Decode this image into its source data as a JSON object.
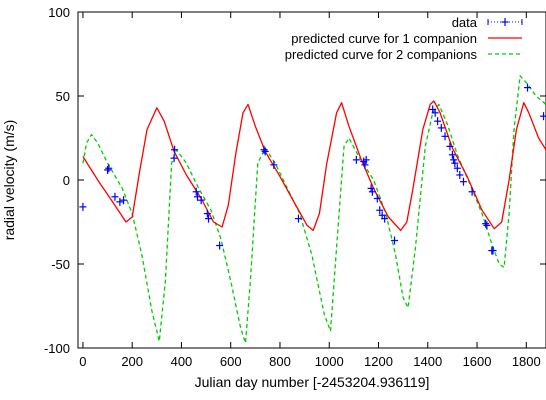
{
  "chart_data": {
    "type": "line",
    "xlabel": "Julian day number [-2453204.936119]",
    "ylabel": "radial velocity (m/s)",
    "xlim": [
      -20,
      1880
    ],
    "ylim": [
      -100,
      100
    ],
    "x_ticks": [
      0,
      200,
      400,
      600,
      800,
      1000,
      1200,
      1400,
      1600,
      1800
    ],
    "y_ticks": [
      -100,
      -50,
      0,
      50,
      100
    ],
    "grid": false,
    "legend_position": "top-right",
    "series": [
      {
        "name": "data",
        "style": "points",
        "color": "#0000ff",
        "points": [
          [
            0,
            -16
          ],
          [
            100,
            6
          ],
          [
            105,
            7
          ],
          [
            130,
            -10
          ],
          [
            150,
            -13
          ],
          [
            165,
            -12
          ],
          [
            370,
            13
          ],
          [
            372,
            18
          ],
          [
            460,
            -7
          ],
          [
            465,
            -10
          ],
          [
            480,
            -12
          ],
          [
            505,
            -20
          ],
          [
            510,
            -23
          ],
          [
            555,
            -39
          ],
          [
            735,
            18
          ],
          [
            740,
            17
          ],
          [
            775,
            9
          ],
          [
            875,
            -23
          ],
          [
            1110,
            12
          ],
          [
            1140,
            11
          ],
          [
            1145,
            9
          ],
          [
            1150,
            12
          ],
          [
            1170,
            -5
          ],
          [
            1175,
            -7
          ],
          [
            1195,
            -11
          ],
          [
            1205,
            -18
          ],
          [
            1215,
            -21
          ],
          [
            1225,
            -23
          ],
          [
            1265,
            -36
          ],
          [
            1420,
            42
          ],
          [
            1430,
            40
          ],
          [
            1440,
            35
          ],
          [
            1455,
            31
          ],
          [
            1470,
            26
          ],
          [
            1490,
            20
          ],
          [
            1500,
            15
          ],
          [
            1505,
            12
          ],
          [
            1510,
            10
          ],
          [
            1520,
            7
          ],
          [
            1530,
            3
          ],
          [
            1545,
            -1
          ],
          [
            1580,
            -7
          ],
          [
            1635,
            -26
          ],
          [
            1640,
            -27
          ],
          [
            1660,
            -42
          ],
          [
            1665,
            -42
          ],
          [
            1805,
            55
          ],
          [
            1870,
            38
          ]
        ]
      },
      {
        "name": "predicted curve for 1 companion",
        "style": "solid",
        "color": "#ff0000",
        "points": [
          [
            0,
            14
          ],
          [
            60,
            0
          ],
          [
            120,
            -13
          ],
          [
            175,
            -25
          ],
          [
            200,
            -22
          ],
          [
            230,
            5
          ],
          [
            260,
            30
          ],
          [
            300,
            43
          ],
          [
            330,
            35
          ],
          [
            370,
            17
          ],
          [
            420,
            3
          ],
          [
            480,
            -11
          ],
          [
            530,
            -25
          ],
          [
            565,
            -28
          ],
          [
            590,
            -15
          ],
          [
            620,
            15
          ],
          [
            650,
            40
          ],
          [
            670,
            45
          ],
          [
            700,
            32
          ],
          [
            740,
            17
          ],
          [
            800,
            2
          ],
          [
            860,
            -14
          ],
          [
            910,
            -27
          ],
          [
            935,
            -30
          ],
          [
            960,
            -20
          ],
          [
            990,
            10
          ],
          [
            1030,
            40
          ],
          [
            1050,
            46
          ],
          [
            1080,
            32
          ],
          [
            1130,
            12
          ],
          [
            1180,
            -5
          ],
          [
            1240,
            -22
          ],
          [
            1290,
            -30
          ],
          [
            1315,
            -25
          ],
          [
            1340,
            -5
          ],
          [
            1380,
            30
          ],
          [
            1410,
            45
          ],
          [
            1425,
            47
          ],
          [
            1450,
            40
          ],
          [
            1500,
            19
          ],
          [
            1560,
            2
          ],
          [
            1620,
            -18
          ],
          [
            1670,
            -29
          ],
          [
            1700,
            -25
          ],
          [
            1730,
            0
          ],
          [
            1760,
            30
          ],
          [
            1790,
            46
          ],
          [
            1810,
            40
          ],
          [
            1850,
            25
          ],
          [
            1880,
            18
          ]
        ]
      },
      {
        "name": "predicted curve for 2 companions",
        "style": "dashed",
        "color": "#00cc00",
        "points": [
          [
            0,
            10
          ],
          [
            15,
            22
          ],
          [
            35,
            27
          ],
          [
            60,
            22
          ],
          [
            100,
            10
          ],
          [
            160,
            -5
          ],
          [
            200,
            -20
          ],
          [
            240,
            -45
          ],
          [
            280,
            -78
          ],
          [
            310,
            -96
          ],
          [
            335,
            -60
          ],
          [
            360,
            10
          ],
          [
            380,
            18
          ],
          [
            420,
            10
          ],
          [
            470,
            -5
          ],
          [
            520,
            -18
          ],
          [
            560,
            -35
          ],
          [
            600,
            -60
          ],
          [
            640,
            -88
          ],
          [
            660,
            -97
          ],
          [
            680,
            -60
          ],
          [
            710,
            10
          ],
          [
            740,
            19
          ],
          [
            780,
            10
          ],
          [
            830,
            -5
          ],
          [
            880,
            -20
          ],
          [
            930,
            -45
          ],
          [
            980,
            -80
          ],
          [
            1005,
            -90
          ],
          [
            1030,
            -40
          ],
          [
            1060,
            20
          ],
          [
            1080,
            25
          ],
          [
            1120,
            14
          ],
          [
            1180,
            0
          ],
          [
            1230,
            -20
          ],
          [
            1270,
            -45
          ],
          [
            1300,
            -70
          ],
          [
            1320,
            -76
          ],
          [
            1350,
            -40
          ],
          [
            1390,
            20
          ],
          [
            1420,
            40
          ],
          [
            1445,
            45
          ],
          [
            1480,
            33
          ],
          [
            1520,
            15
          ],
          [
            1570,
            -2
          ],
          [
            1620,
            -20
          ],
          [
            1660,
            -38
          ],
          [
            1690,
            -50
          ],
          [
            1710,
            -52
          ],
          [
            1730,
            -20
          ],
          [
            1750,
            30
          ],
          [
            1775,
            62
          ],
          [
            1800,
            58
          ],
          [
            1840,
            50
          ],
          [
            1880,
            45
          ]
        ]
      }
    ]
  }
}
